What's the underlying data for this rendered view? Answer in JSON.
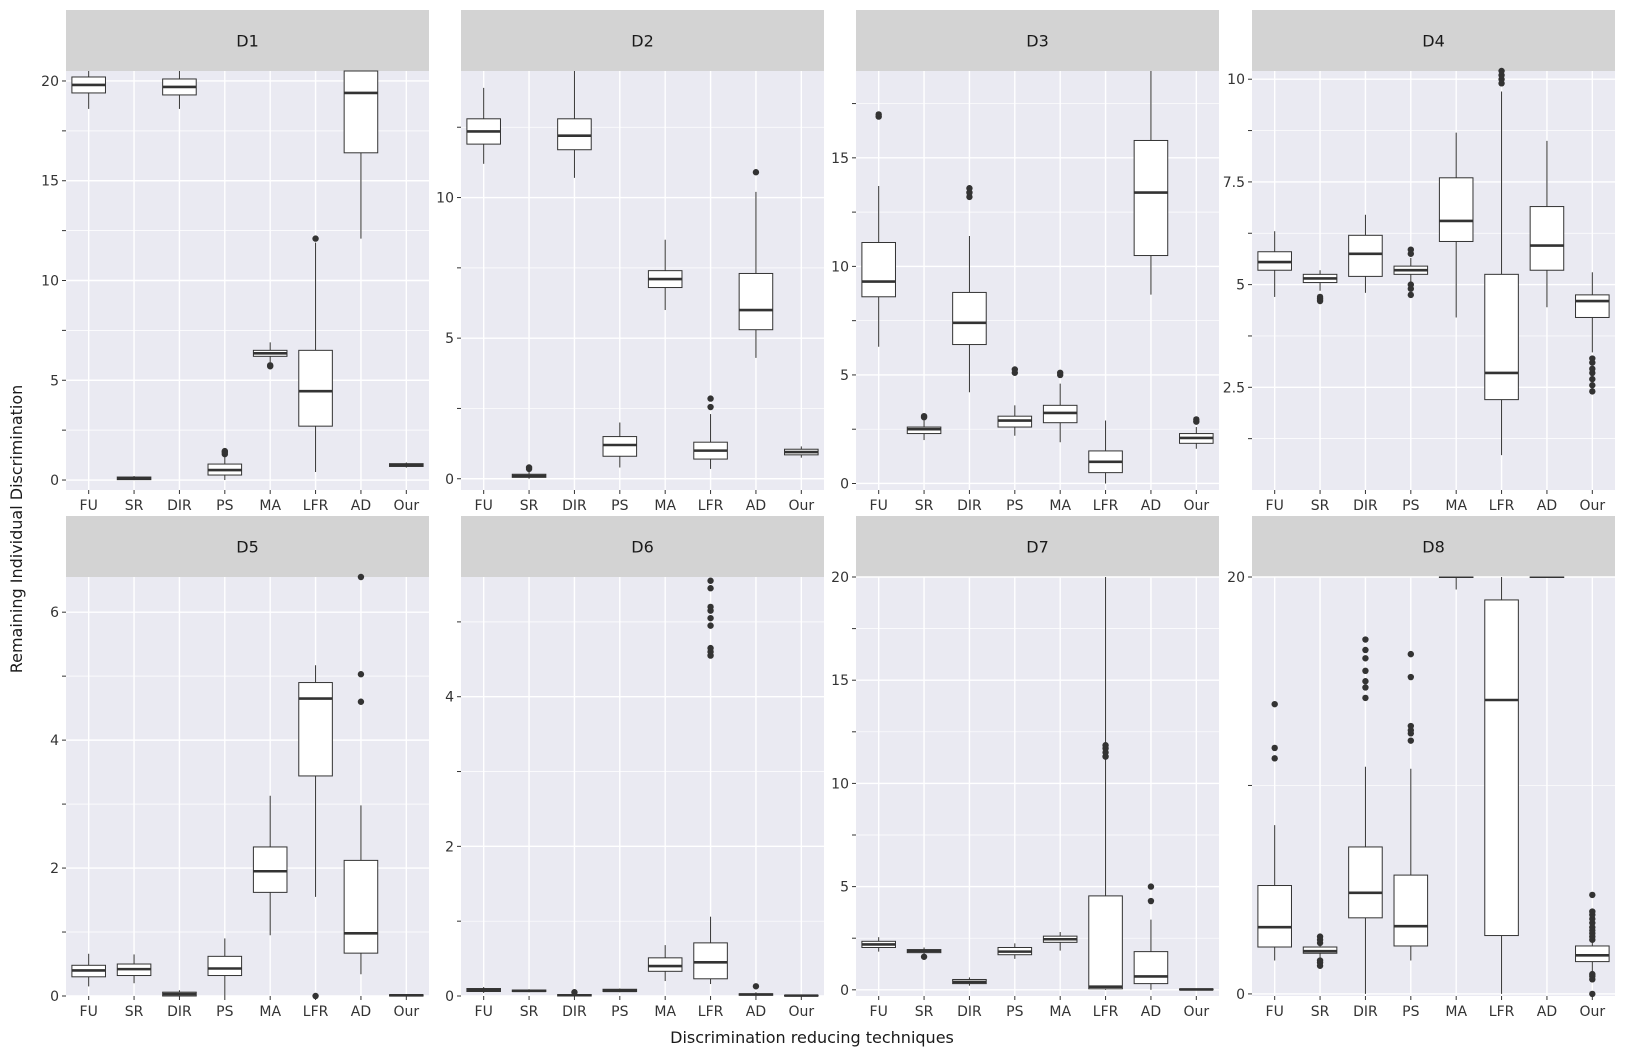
{
  "chart_data": {
    "type": "boxplot",
    "xlabel": "Discrimination reducing techniques",
    "ylabel": "Remaining Individual Discrimination",
    "categories": [
      "FU",
      "SR",
      "DIR",
      "PS",
      "MA",
      "LFR",
      "AD",
      "Our"
    ],
    "grid": true,
    "background": "#EAEAF2",
    "strip_color": "#D3D3D3",
    "box_fill": "#FFFFFF",
    "line_color": "#333333",
    "panels": [
      {
        "label": "D1",
        "ylim": [
          -0.5,
          20.5
        ],
        "yticks": [
          0,
          5,
          10,
          15,
          20
        ],
        "boxes": [
          {
            "q1": 19.4,
            "median": 19.8,
            "q3": 20.2,
            "low": 18.6,
            "high": 20.5,
            "outliers": []
          },
          {
            "q1": 0.02,
            "median": 0.08,
            "q3": 0.15,
            "low": 0.0,
            "high": 0.2,
            "outliers": []
          },
          {
            "q1": 19.3,
            "median": 19.7,
            "q3": 20.1,
            "low": 18.6,
            "high": 20.5,
            "outliers": []
          },
          {
            "q1": 0.25,
            "median": 0.5,
            "q3": 0.8,
            "low": 0.0,
            "high": 1.2,
            "outliers": [
              1.3,
              1.4,
              1.45
            ]
          },
          {
            "q1": 6.2,
            "median": 6.35,
            "q3": 6.5,
            "low": 5.9,
            "high": 6.9,
            "outliers": [
              5.7,
              5.75
            ]
          },
          {
            "q1": 2.7,
            "median": 4.45,
            "q3": 6.5,
            "low": 0.4,
            "high": 11.9,
            "outliers": [
              12.1
            ]
          },
          {
            "q1": 16.4,
            "median": 19.4,
            "q3": 20.5,
            "low": 12.1,
            "high": 20.5,
            "outliers": []
          },
          {
            "q1": 0.68,
            "median": 0.75,
            "q3": 0.82,
            "low": 0.62,
            "high": 0.88,
            "outliers": []
          }
        ]
      },
      {
        "label": "D2",
        "ylim": [
          -0.4,
          14.5
        ],
        "yticks": [
          0,
          5,
          10
        ],
        "boxes": [
          {
            "q1": 11.9,
            "median": 12.35,
            "q3": 12.8,
            "low": 11.2,
            "high": 13.9,
            "outliers": []
          },
          {
            "q1": 0.05,
            "median": 0.1,
            "q3": 0.16,
            "low": 0.0,
            "high": 0.25,
            "outliers": [
              0.35,
              0.4
            ]
          },
          {
            "q1": 11.7,
            "median": 12.2,
            "q3": 12.8,
            "low": 10.7,
            "high": 14.5,
            "outliers": []
          },
          {
            "q1": 0.8,
            "median": 1.2,
            "q3": 1.5,
            "low": 0.4,
            "high": 2.0,
            "outliers": []
          },
          {
            "q1": 6.8,
            "median": 7.1,
            "q3": 7.4,
            "low": 6.0,
            "high": 8.5,
            "outliers": []
          },
          {
            "q1": 0.7,
            "median": 1.0,
            "q3": 1.3,
            "low": 0.35,
            "high": 2.3,
            "outliers": [
              2.55,
              2.85
            ]
          },
          {
            "q1": 5.3,
            "median": 6.0,
            "q3": 7.3,
            "low": 4.3,
            "high": 10.2,
            "outliers": [
              10.9
            ]
          },
          {
            "q1": 0.85,
            "median": 0.95,
            "q3": 1.05,
            "low": 0.75,
            "high": 1.15,
            "outliers": []
          }
        ]
      },
      {
        "label": "D3",
        "ylim": [
          -0.3,
          19.0
        ],
        "yticks": [
          0,
          5,
          10,
          15
        ],
        "boxes": [
          {
            "q1": 8.6,
            "median": 9.3,
            "q3": 11.1,
            "low": 6.3,
            "high": 13.7,
            "outliers": [
              16.9,
              17.0
            ]
          },
          {
            "q1": 2.3,
            "median": 2.5,
            "q3": 2.6,
            "low": 2.0,
            "high": 2.9,
            "outliers": [
              3.05,
              3.1
            ]
          },
          {
            "q1": 6.4,
            "median": 7.4,
            "q3": 8.8,
            "low": 4.2,
            "high": 11.4,
            "outliers": [
              13.2,
              13.4,
              13.6
            ]
          },
          {
            "q1": 2.6,
            "median": 2.9,
            "q3": 3.1,
            "low": 2.2,
            "high": 3.6,
            "outliers": [
              5.1,
              5.25
            ]
          },
          {
            "q1": 2.8,
            "median": 3.25,
            "q3": 3.6,
            "low": 1.9,
            "high": 4.6,
            "outliers": [
              5.0,
              5.1
            ]
          },
          {
            "q1": 0.5,
            "median": 1.0,
            "q3": 1.5,
            "low": 0.0,
            "high": 2.9,
            "outliers": []
          },
          {
            "q1": 10.5,
            "median": 13.4,
            "q3": 15.8,
            "low": 8.7,
            "high": 19.0,
            "outliers": []
          },
          {
            "q1": 1.85,
            "median": 2.1,
            "q3": 2.3,
            "low": 1.6,
            "high": 2.6,
            "outliers": [
              2.85,
              2.95
            ]
          }
        ]
      },
      {
        "label": "D4",
        "ylim": [
          0.0,
          10.2
        ],
        "yticks": [
          2.5,
          5,
          7.5,
          10
        ],
        "ytick_labels": [
          "2.5",
          "5",
          "7.5",
          "10"
        ],
        "boxes": [
          {
            "q1": 5.35,
            "median": 5.55,
            "q3": 5.8,
            "low": 4.7,
            "high": 6.3,
            "outliers": []
          },
          {
            "q1": 5.05,
            "median": 5.15,
            "q3": 5.25,
            "low": 4.85,
            "high": 5.35,
            "outliers": [
              4.6,
              4.65,
              4.7
            ]
          },
          {
            "q1": 5.2,
            "median": 5.75,
            "q3": 6.2,
            "low": 4.8,
            "high": 6.7,
            "outliers": []
          },
          {
            "q1": 5.25,
            "median": 5.35,
            "q3": 5.45,
            "low": 5.05,
            "high": 5.65,
            "outliers": [
              4.75,
              4.9,
              5.0,
              5.75,
              5.85
            ]
          },
          {
            "q1": 6.05,
            "median": 6.55,
            "q3": 7.6,
            "low": 4.2,
            "high": 8.7,
            "outliers": []
          },
          {
            "q1": 2.2,
            "median": 2.85,
            "q3": 5.25,
            "low": 0.85,
            "high": 9.7,
            "outliers": [
              9.9,
              10.0,
              10.1,
              10.2
            ]
          },
          {
            "q1": 5.35,
            "median": 5.95,
            "q3": 6.9,
            "low": 4.45,
            "high": 8.5,
            "outliers": []
          },
          {
            "q1": 4.2,
            "median": 4.6,
            "q3": 4.75,
            "low": 3.35,
            "high": 5.3,
            "outliers": [
              2.4,
              2.55,
              2.7,
              2.85,
              2.95,
              3.1,
              3.2
            ]
          }
        ]
      },
      {
        "label": "D5",
        "ylim": [
          0.0,
          6.55
        ],
        "yticks": [
          0,
          2,
          4,
          6
        ],
        "boxes": [
          {
            "q1": 0.3,
            "median": 0.4,
            "q3": 0.48,
            "low": 0.15,
            "high": 0.66,
            "outliers": []
          },
          {
            "q1": 0.32,
            "median": 0.42,
            "q3": 0.5,
            "low": 0.2,
            "high": 0.65,
            "outliers": []
          },
          {
            "q1": 0.0,
            "median": 0.03,
            "q3": 0.06,
            "low": 0.0,
            "high": 0.09,
            "outliers": []
          },
          {
            "q1": 0.32,
            "median": 0.43,
            "q3": 0.62,
            "low": 0.0,
            "high": 0.9,
            "outliers": []
          },
          {
            "q1": 1.62,
            "median": 1.95,
            "q3": 2.33,
            "low": 0.95,
            "high": 3.13,
            "outliers": []
          },
          {
            "q1": 3.44,
            "median": 4.65,
            "q3": 4.9,
            "low": 1.55,
            "high": 5.17,
            "outliers": [
              0.0
            ]
          },
          {
            "q1": 0.67,
            "median": 0.98,
            "q3": 2.12,
            "low": 0.34,
            "high": 2.98,
            "outliers": [
              4.6,
              5.03,
              6.55
            ]
          },
          {
            "q1": 0.0,
            "median": 0.01,
            "q3": 0.02,
            "low": 0.0,
            "high": 0.03,
            "outliers": []
          }
        ]
      },
      {
        "label": "D6",
        "ylim": [
          0.0,
          5.6
        ],
        "yticks": [
          0,
          2,
          4
        ],
        "boxes": [
          {
            "q1": 0.06,
            "median": 0.08,
            "q3": 0.1,
            "low": 0.04,
            "high": 0.12,
            "outliers": []
          },
          {
            "q1": 0.06,
            "median": 0.07,
            "q3": 0.08,
            "low": 0.05,
            "high": 0.09,
            "outliers": []
          },
          {
            "q1": 0.0,
            "median": 0.01,
            "q3": 0.02,
            "low": 0.0,
            "high": 0.03,
            "outliers": [
              0.05
            ]
          },
          {
            "q1": 0.06,
            "median": 0.07,
            "q3": 0.09,
            "low": 0.05,
            "high": 0.1,
            "outliers": []
          },
          {
            "q1": 0.33,
            "median": 0.4,
            "q3": 0.51,
            "low": 0.2,
            "high": 0.68,
            "outliers": []
          },
          {
            "q1": 0.23,
            "median": 0.45,
            "q3": 0.71,
            "low": 0.16,
            "high": 1.06,
            "outliers": [
              4.55,
              4.6,
              4.65,
              4.95,
              5.05,
              5.15,
              5.2,
              5.45,
              5.55
            ]
          },
          {
            "q1": 0.01,
            "median": 0.02,
            "q3": 0.03,
            "low": 0.0,
            "high": 0.05,
            "outliers": [
              0.13
            ]
          },
          {
            "q1": 0.0,
            "median": 0.005,
            "q3": 0.01,
            "low": 0.0,
            "high": 0.02,
            "outliers": []
          }
        ]
      },
      {
        "label": "D7",
        "ylim": [
          -0.3,
          20.0
        ],
        "yticks": [
          0,
          5,
          10,
          15,
          20
        ],
        "boxes": [
          {
            "q1": 2.05,
            "median": 2.2,
            "q3": 2.35,
            "low": 1.85,
            "high": 2.55,
            "outliers": []
          },
          {
            "q1": 1.8,
            "median": 1.88,
            "q3": 1.95,
            "low": 1.7,
            "high": 2.05,
            "outliers": [
              1.6
            ]
          },
          {
            "q1": 0.3,
            "median": 0.38,
            "q3": 0.5,
            "low": 0.2,
            "high": 0.6,
            "outliers": []
          },
          {
            "q1": 1.7,
            "median": 1.85,
            "q3": 2.05,
            "low": 1.5,
            "high": 2.25,
            "outliers": []
          },
          {
            "q1": 2.3,
            "median": 2.45,
            "q3": 2.6,
            "low": 1.9,
            "high": 2.8,
            "outliers": []
          },
          {
            "q1": 0.05,
            "median": 0.15,
            "q3": 4.55,
            "low": 0.0,
            "high": 20.0,
            "outliers": [
              11.3,
              11.5,
              11.7,
              11.85
            ]
          },
          {
            "q1": 0.3,
            "median": 0.65,
            "q3": 1.85,
            "low": 0.0,
            "high": 3.4,
            "outliers": [
              4.3,
              5.0
            ]
          },
          {
            "q1": 0.0,
            "median": 0.02,
            "q3": 0.04,
            "low": 0.0,
            "high": 0.06,
            "outliers": []
          }
        ]
      },
      {
        "label": "D8",
        "ylim": [
          -0.1,
          20.0
        ],
        "yticks": [
          0,
          20
        ],
        "boxes": [
          {
            "q1": 2.25,
            "median": 3.2,
            "q3": 5.2,
            "low": 1.6,
            "high": 8.1,
            "outliers": [
              11.3,
              11.8,
              13.9
            ]
          },
          {
            "q1": 1.95,
            "median": 2.05,
            "q3": 2.25,
            "low": 1.65,
            "high": 2.45,
            "outliers": [
              1.35,
              1.5,
              1.6,
              2.45,
              2.6,
              2.75
            ]
          },
          {
            "q1": 3.65,
            "median": 4.85,
            "q3": 7.05,
            "low": 0.0,
            "high": 10.9,
            "outliers": [
              14.2,
              14.7,
              15.0,
              15.5,
              16.1,
              16.5,
              17.0
            ]
          },
          {
            "q1": 2.3,
            "median": 3.25,
            "q3": 5.7,
            "low": 1.6,
            "high": 10.8,
            "outliers": [
              12.15,
              12.5,
              12.65,
              12.85,
              15.2,
              16.3
            ]
          },
          {
            "q1": 20.5,
            "median": 20.5,
            "q3": 20.5,
            "low": 19.4,
            "high": 20.5,
            "outliers": []
          },
          {
            "q1": 2.8,
            "median": 14.1,
            "q3": 18.9,
            "low": 0.0,
            "high": 20.0,
            "outliers": []
          },
          {
            "q1": 20.5,
            "median": 20.5,
            "q3": 20.5,
            "low": 20.5,
            "high": 20.5,
            "outliers": []
          },
          {
            "q1": 1.55,
            "median": 1.85,
            "q3": 2.3,
            "low": 1.05,
            "high": 3.1,
            "outliers": [
              0.0,
              0.7,
              0.85,
              0.95,
              2.6,
              2.75,
              2.9,
              3.05,
              3.2,
              3.4,
              3.6,
              3.8,
              3.95,
              4.75
            ]
          }
        ]
      }
    ]
  }
}
